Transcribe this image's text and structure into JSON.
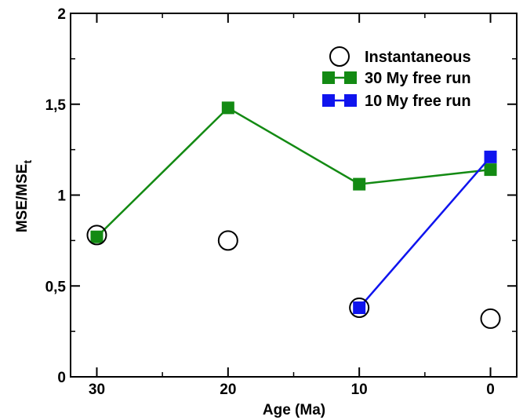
{
  "chart_data": {
    "type": "scatter",
    "xlabel": "Age (Ma)",
    "ylabel_main": "MSE/MSE",
    "ylabel_sub": "t",
    "xlim": [
      32,
      -2
    ],
    "ylim": [
      0,
      2
    ],
    "xticks": [
      {
        "value": 30,
        "label": "30"
      },
      {
        "value": 20,
        "label": "20"
      },
      {
        "value": 10,
        "label": "10"
      },
      {
        "value": 0,
        "label": "0"
      }
    ],
    "yticks": [
      {
        "value": 0,
        "label": "0"
      },
      {
        "value": 0.5,
        "label": "0,5"
      },
      {
        "value": 1,
        "label": "1"
      },
      {
        "value": 1.5,
        "label": "1,5"
      },
      {
        "value": 2,
        "label": "2"
      }
    ],
    "grid": false,
    "legend_position": "top-right",
    "series": [
      {
        "name": "Instantaneous",
        "style": "open-circle",
        "color": "#000000",
        "points": [
          {
            "x": 30,
            "y": 0.78
          },
          {
            "x": 20,
            "y": 0.75
          },
          {
            "x": 10,
            "y": 0.38
          },
          {
            "x": 0,
            "y": 0.32
          }
        ]
      },
      {
        "name": "30 My free run",
        "style": "square-line",
        "color": "#138a13",
        "points": [
          {
            "x": 30,
            "y": 0.77
          },
          {
            "x": 20,
            "y": 1.48
          },
          {
            "x": 10,
            "y": 1.06
          },
          {
            "x": 0,
            "y": 1.14
          }
        ]
      },
      {
        "name": "10 My free run",
        "style": "square-line",
        "color": "#0f14ee",
        "points": [
          {
            "x": 10,
            "y": 0.38
          },
          {
            "x": 0,
            "y": 1.21
          }
        ]
      }
    ]
  }
}
